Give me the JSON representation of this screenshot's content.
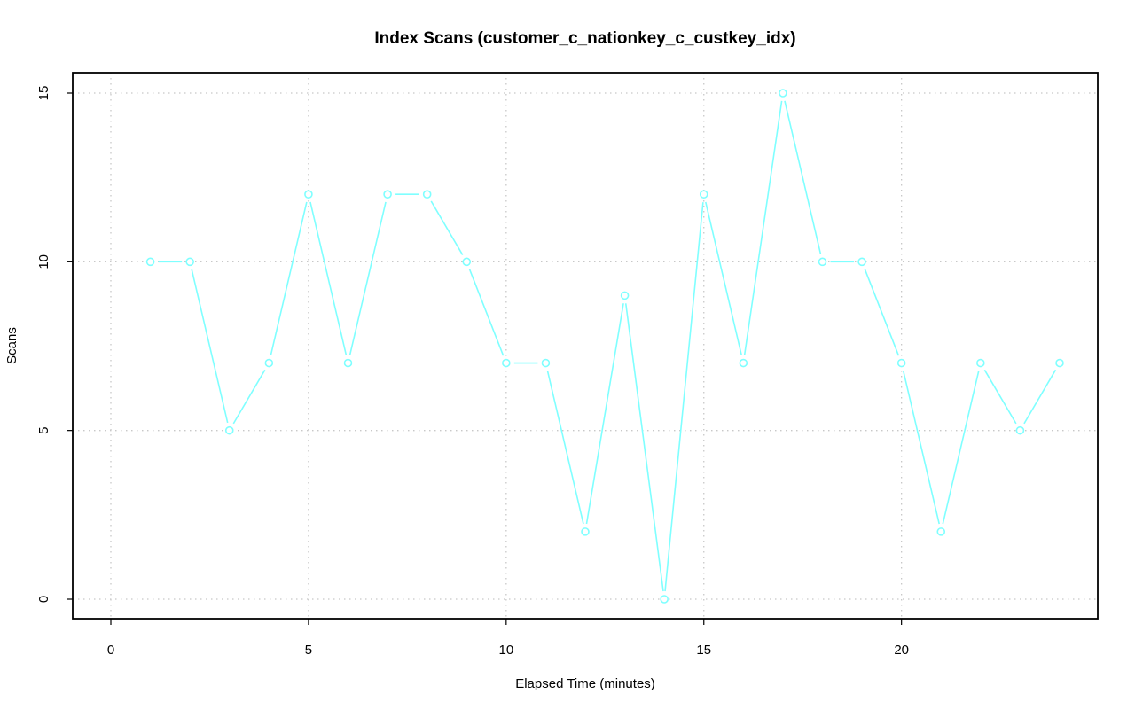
{
  "chart_data": {
    "type": "line",
    "title": "Index Scans (customer_c_nationkey_c_custkey_idx)",
    "xlabel": "Elapsed Time (minutes)",
    "ylabel": "Scans",
    "xlim": [
      0,
      25
    ],
    "ylim": [
      0,
      15
    ],
    "x_ticks": [
      0,
      5,
      10,
      15,
      20
    ],
    "y_ticks": [
      0,
      5,
      10,
      15
    ],
    "grid": true,
    "legend": false,
    "series": [
      {
        "color": "#7fffff",
        "marker": "circle",
        "x": [
          1,
          2,
          3,
          4,
          5,
          6,
          7,
          8,
          9,
          10,
          11,
          12,
          13,
          14,
          15,
          16,
          17,
          18,
          19,
          20,
          21,
          22,
          23,
          24
        ],
        "y": [
          10,
          10,
          5,
          7,
          12,
          7,
          12,
          12,
          10,
          7,
          7,
          2,
          9,
          0,
          12,
          7,
          15,
          10,
          10,
          7,
          2,
          7,
          5,
          7
        ]
      }
    ]
  }
}
